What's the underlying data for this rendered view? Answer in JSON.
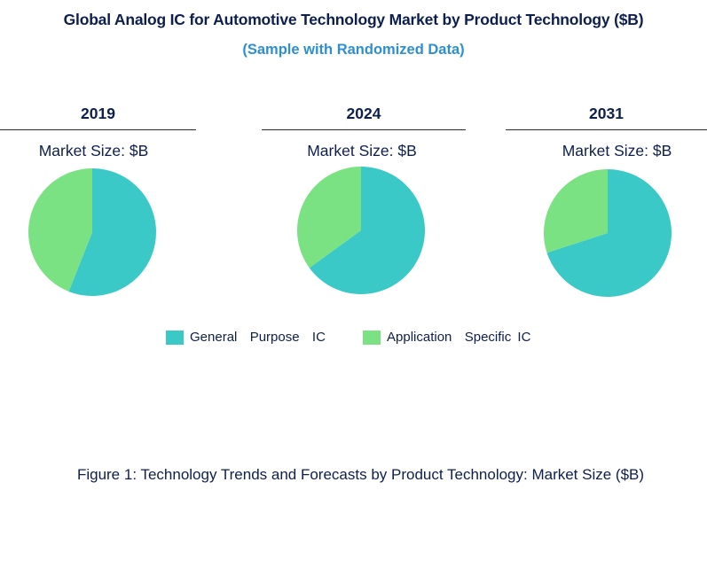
{
  "title": "Global Analog IC for Automotive Technology Market by Product Technology ($B)",
  "subtitle": "(Sample with Randomized Data)",
  "caption": "Figure 1: Technology Trends and Forecasts by Product Technology: Market Size ($B)",
  "colors": {
    "general_purpose": "#3ac9c6",
    "application_specific": "#7ae283"
  },
  "chart_data": [
    {
      "type": "pie",
      "title": "2019",
      "subtitle": "Market Size: $B",
      "categories": [
        "General Purpose IC",
        "Application Specific IC"
      ],
      "values": [
        56,
        44
      ]
    },
    {
      "type": "pie",
      "title": "2024",
      "subtitle": "Market Size: $B",
      "categories": [
        "General Purpose IC",
        "Application Specific IC"
      ],
      "values": [
        65,
        35
      ]
    },
    {
      "type": "pie",
      "title": "2031",
      "subtitle": "Market Size: $B",
      "categories": [
        "General Purpose IC",
        "Application Specific IC"
      ],
      "values": [
        70,
        30
      ]
    }
  ],
  "legend": [
    {
      "label": "General  Purpose  IC",
      "color_key": "general_purpose"
    },
    {
      "label": "Application  Specific IC",
      "color_key": "application_specific"
    }
  ]
}
